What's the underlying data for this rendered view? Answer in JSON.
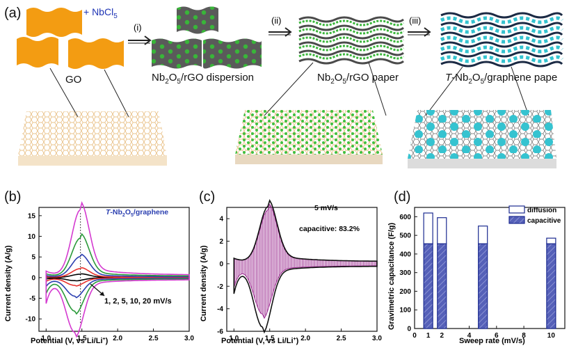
{
  "panel_a": {
    "label": "(a)",
    "reagent_prefix": "+ NbCl",
    "reagent_sub": "5",
    "steps": [
      "(i)",
      "(ii)",
      "(iii)"
    ],
    "captions": {
      "go": "GO",
      "dispersion_a": "Nb",
      "dispersion_s1": "2",
      "dispersion_b": "O",
      "dispersion_s2": "5",
      "dispersion_c": "/rGO dispersion",
      "paper_a": "Nb",
      "paper_s1": "2",
      "paper_b": "O",
      "paper_s2": "5",
      "paper_c": "/rGO paper",
      "tpaper_italic": "T",
      "tpaper_a": "-Nb",
      "tpaper_s1": "2",
      "tpaper_b": "O",
      "tpaper_s2": "5",
      "tpaper_c": "/graphene pape"
    },
    "colors": {
      "go": "#f39c12",
      "np_green": "#39b539",
      "np_cyan": "#35c3d0",
      "sheet_dark": "#555555"
    }
  },
  "panel_b": {
    "label": "(b)",
    "legend_italic": "T",
    "legend_a": "-Nb",
    "legend_s1": "2",
    "legend_b": "O",
    "legend_s2": "5",
    "legend_c": "/graphene",
    "annotation": "1, 2, 5, 10, 20 mV/s",
    "xlabel": "Potential (V, vs Li/Li",
    "xlabel_sup": "+",
    "xlabel_end": ")",
    "ylabel": "Current density (A/g)",
    "xticks": [
      "1.0",
      "1.5",
      "2.0",
      "2.5",
      "3.0"
    ],
    "yticks": [
      "15",
      "10",
      "5",
      "0",
      "-5",
      "-10"
    ]
  },
  "panel_c": {
    "label": "(c)",
    "rate": "5 mV/s",
    "capacitive": "capacitive: 83.2%",
    "xlabel": "Potential (V, vs Li/Li",
    "xlabel_sup": "+",
    "xlabel_end": ")",
    "ylabel": "Current density (A/g)",
    "xticks": [
      "1.0",
      "1.5",
      "2.0",
      "2.5",
      "3.0"
    ],
    "yticks": [
      "4",
      "2",
      "0",
      "-2",
      "-4",
      "-6"
    ]
  },
  "panel_d": {
    "label": "(d)",
    "xlabel": "Sweep rate (mV/s)",
    "ylabel": "Gravimetric capacitance (F/g)",
    "legend": [
      "diffusion",
      "capacitive"
    ],
    "xticks": [
      "0",
      "1",
      "2",
      "4",
      "6",
      "8",
      "10"
    ],
    "yticks": [
      "600",
      "500",
      "400",
      "300",
      "200",
      "100",
      "0"
    ]
  },
  "chart_data": [
    {
      "type": "line",
      "panel": "b",
      "xlabel": "Potential (V, vs Li/Li+)",
      "ylabel": "Current density (A/g)",
      "xlim": [
        0.9,
        3.0
      ],
      "ylim": [
        -13,
        17
      ],
      "series": [
        {
          "name": "1 mV/s",
          "color": "#000000",
          "peak_ox": 0.8,
          "peak_red": -0.7
        },
        {
          "name": "2 mV/s",
          "color": "#e8322e",
          "peak_ox": 2.1,
          "peak_red": -1.8
        },
        {
          "name": "5 mV/s",
          "color": "#2b3fb0",
          "peak_ox": 4.9,
          "peak_red": -4.3
        },
        {
          "name": "10 mV/s",
          "color": "#2b9a3a",
          "peak_ox": 9.2,
          "peak_red": -7.8
        },
        {
          "name": "20 mV/s",
          "color": "#d43ad0",
          "peak_ox": 15.8,
          "peak_red": -12.7
        }
      ]
    },
    {
      "type": "area",
      "panel": "c",
      "xlabel": "Potential (V, vs Li/Li+)",
      "ylabel": "Current density (A/g)",
      "xlim": [
        0.9,
        3.0
      ],
      "ylim": [
        -6,
        5
      ],
      "series": [
        {
          "name": "5 mV/s",
          "peak_ox": 4.9,
          "peak_red": -5.4
        },
        {
          "name": "capacitive",
          "peak_ox": 4.6,
          "peak_red": -4.3
        }
      ]
    },
    {
      "type": "bar",
      "panel": "d",
      "xlabel": "Sweep rate (mV/s)",
      "ylabel": "Gravimetric capacitance (F/g)",
      "xlim": [
        0,
        11
      ],
      "ylim": [
        0,
        650
      ],
      "x": [
        1,
        2,
        5,
        10
      ],
      "series": [
        {
          "name": "capacitive",
          "values": [
            455,
            455,
            455,
            455
          ]
        },
        {
          "name": "diffusion",
          "values": [
            165,
            140,
            95,
            30
          ]
        }
      ]
    }
  ]
}
